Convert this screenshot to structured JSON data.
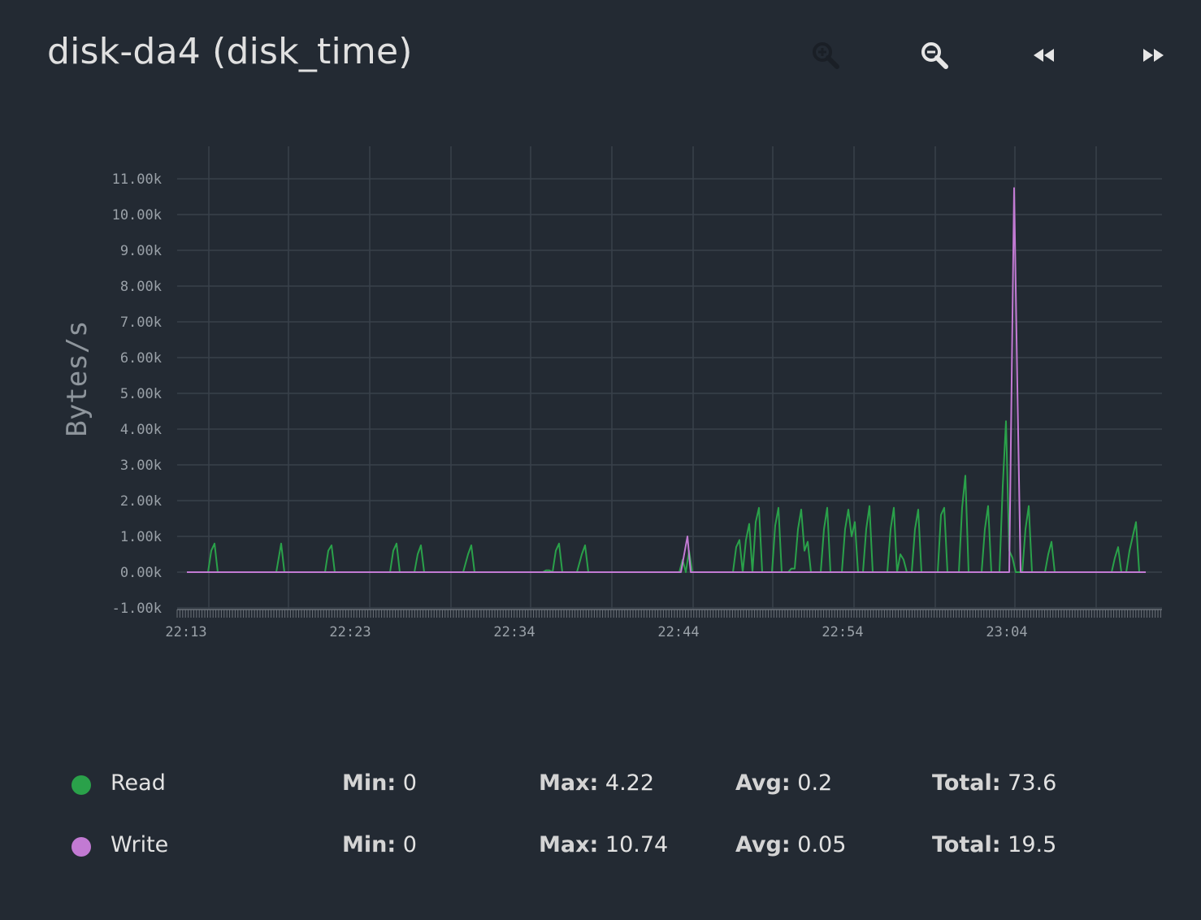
{
  "title": "disk-da4 (disk_time)",
  "toolbar": {
    "zoom_in_icon": "zoom-in-icon",
    "zoom_out_icon": "zoom-out-icon",
    "back_icon": "rewind-icon",
    "forward_icon": "fast-forward-icon"
  },
  "chart_data": {
    "type": "line",
    "ylabel": "Bytes/s",
    "xlabel": "",
    "x_tick_labels": [
      "22:13",
      "22:23",
      "22:34",
      "22:44",
      "22:54",
      "23:04"
    ],
    "y_tick_labels": [
      "-1.00k",
      "0.00k",
      "1.00k",
      "2.00k",
      "3.00k",
      "4.00k",
      "5.00k",
      "6.00k",
      "7.00k",
      "8.00k",
      "9.00k",
      "10.00k",
      "11.00k"
    ],
    "ylim": [
      -1,
      11
    ],
    "xlim_minutes": [
      0,
      60
    ],
    "grid": true,
    "colors": {
      "Read": "#2aa14a",
      "Write": "#c27ad3",
      "grid": "#39414b",
      "background": "#232a33"
    },
    "series": [
      {
        "name": "Read",
        "color": "#2aa14a",
        "points": [
          [
            0,
            0
          ],
          [
            1.3,
            0
          ],
          [
            1.5,
            0.6
          ],
          [
            1.7,
            0.8
          ],
          [
            1.9,
            0
          ],
          [
            5.5,
            0
          ],
          [
            5.8,
            0.8
          ],
          [
            6.0,
            0
          ],
          [
            8.5,
            0
          ],
          [
            8.7,
            0.6
          ],
          [
            8.9,
            0.75
          ],
          [
            9.1,
            0
          ],
          [
            12.5,
            0
          ],
          [
            12.7,
            0.6
          ],
          [
            12.9,
            0.8
          ],
          [
            13.1,
            0
          ],
          [
            14.0,
            0
          ],
          [
            14.2,
            0.5
          ],
          [
            14.4,
            0.75
          ],
          [
            14.6,
            0
          ],
          [
            17.0,
            0
          ],
          [
            17.3,
            0.5
          ],
          [
            17.5,
            0.75
          ],
          [
            17.7,
            0
          ],
          [
            21.9,
            0
          ],
          [
            22.1,
            0.05
          ],
          [
            22.3,
            0.05
          ],
          [
            22.5,
            0
          ],
          [
            22.7,
            0.6
          ],
          [
            22.9,
            0.8
          ],
          [
            23.1,
            0
          ],
          [
            24.0,
            0
          ],
          [
            24.3,
            0.5
          ],
          [
            24.5,
            0.75
          ],
          [
            24.7,
            0
          ],
          [
            30.3,
            0
          ],
          [
            30.5,
            0.35
          ],
          [
            30.7,
            0
          ],
          [
            30.9,
            0.6
          ],
          [
            31.1,
            0
          ],
          [
            33.6,
            0
          ],
          [
            33.8,
            0.7
          ],
          [
            34.0,
            0.9
          ],
          [
            34.2,
            0
          ],
          [
            34.4,
            0.9
          ],
          [
            34.6,
            1.35
          ],
          [
            34.8,
            0
          ],
          [
            35.0,
            1.4
          ],
          [
            35.2,
            1.8
          ],
          [
            35.4,
            0
          ],
          [
            36.0,
            0
          ],
          [
            36.2,
            1.3
          ],
          [
            36.4,
            1.8
          ],
          [
            36.6,
            0
          ],
          [
            37.0,
            0
          ],
          [
            37.2,
            0.1
          ],
          [
            37.4,
            0.1
          ],
          [
            37.6,
            1.2
          ],
          [
            37.8,
            1.75
          ],
          [
            38.0,
            0.6
          ],
          [
            38.2,
            0.85
          ],
          [
            38.4,
            0
          ],
          [
            39.0,
            0
          ],
          [
            39.2,
            1.2
          ],
          [
            39.4,
            1.8
          ],
          [
            39.6,
            0
          ],
          [
            40.3,
            0
          ],
          [
            40.5,
            1.2
          ],
          [
            40.7,
            1.75
          ],
          [
            40.9,
            1.0
          ],
          [
            41.1,
            1.4
          ],
          [
            41.3,
            0
          ],
          [
            41.6,
            0
          ],
          [
            41.8,
            1.2
          ],
          [
            42.0,
            1.85
          ],
          [
            42.2,
            0
          ],
          [
            43.1,
            0
          ],
          [
            43.3,
            1.2
          ],
          [
            43.5,
            1.8
          ],
          [
            43.7,
            0
          ],
          [
            43.9,
            0.5
          ],
          [
            44.1,
            0.35
          ],
          [
            44.3,
            0
          ],
          [
            44.6,
            0
          ],
          [
            44.8,
            1.2
          ],
          [
            45.0,
            1.75
          ],
          [
            45.2,
            0
          ],
          [
            46.2,
            0
          ],
          [
            46.4,
            1.6
          ],
          [
            46.6,
            1.8
          ],
          [
            46.8,
            0
          ],
          [
            47.5,
            0
          ],
          [
            47.7,
            1.8
          ],
          [
            47.9,
            2.7
          ],
          [
            48.1,
            0
          ],
          [
            48.9,
            0
          ],
          [
            49.1,
            1.2
          ],
          [
            49.3,
            1.85
          ],
          [
            49.5,
            0
          ],
          [
            50.0,
            0
          ],
          [
            50.2,
            2.4
          ],
          [
            50.4,
            4.22
          ],
          [
            50.6,
            0.6
          ],
          [
            50.8,
            0.4
          ],
          [
            51.0,
            0
          ],
          [
            51.4,
            0
          ],
          [
            51.6,
            1.2
          ],
          [
            51.8,
            1.85
          ],
          [
            52.0,
            0
          ],
          [
            52.8,
            0
          ],
          [
            53.0,
            0.5
          ],
          [
            53.2,
            0.85
          ],
          [
            53.4,
            0
          ],
          [
            56.9,
            0
          ],
          [
            57.1,
            0.4
          ],
          [
            57.3,
            0.7
          ],
          [
            57.5,
            0
          ],
          [
            57.8,
            0
          ],
          [
            58.0,
            0.6
          ],
          [
            58.2,
            1.0
          ],
          [
            58.4,
            1.4
          ],
          [
            58.6,
            0
          ],
          [
            59.0,
            0
          ]
        ]
      },
      {
        "name": "Write",
        "color": "#c27ad3",
        "points": [
          [
            0,
            0
          ],
          [
            30.4,
            0
          ],
          [
            30.8,
            1.0
          ],
          [
            31.0,
            0
          ],
          [
            50.3,
            0
          ],
          [
            50.6,
            0
          ],
          [
            50.9,
            10.74
          ],
          [
            51.1,
            5.2
          ],
          [
            51.3,
            0
          ],
          [
            59.0,
            0
          ]
        ]
      }
    ]
  },
  "legend": [
    {
      "name": "Read",
      "color": "#2aa14a",
      "min_label": "Min:",
      "min": "0",
      "max_label": "Max:",
      "max": "4.22",
      "avg_label": "Avg:",
      "avg": "0.2",
      "total_label": "Total:",
      "total": "73.6"
    },
    {
      "name": "Write",
      "color": "#c27ad3",
      "min_label": "Min:",
      "min": "0",
      "max_label": "Max:",
      "max": "10.74",
      "avg_label": "Avg:",
      "avg": "0.05",
      "total_label": "Total:",
      "total": "19.5"
    }
  ]
}
